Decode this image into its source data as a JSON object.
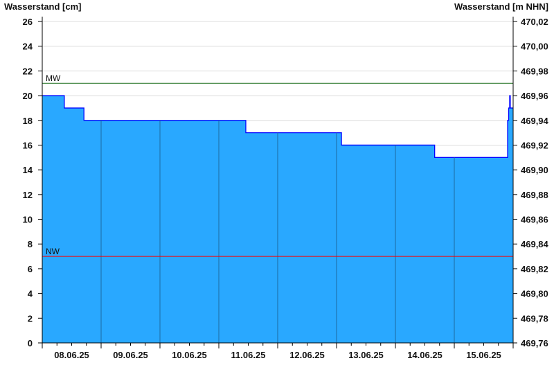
{
  "chart_data": {
    "type": "area",
    "ylabel_left": "Wasserstand [cm]",
    "ylabel_right": "Wasserstand [m NHN]",
    "ylim": [
      0,
      26
    ],
    "yticks_left": [
      "0",
      "2",
      "4",
      "6",
      "8",
      "10",
      "12",
      "14",
      "16",
      "18",
      "20",
      "22",
      "24",
      "26"
    ],
    "yticks_right": [
      "469,76",
      "469,78",
      "469,80",
      "469,82",
      "469,84",
      "469,86",
      "469,88",
      "469,90",
      "469,92",
      "469,94",
      "469,96",
      "469,98",
      "470,00",
      "470,02"
    ],
    "xlim": [
      "07.06.25 24:00",
      "15.06.25 24:00"
    ],
    "xticks": [
      "08.06.25",
      "09.06.25",
      "10.06.25",
      "11.06.25",
      "12.06.25",
      "13.06.25",
      "14.06.25",
      "15.06.25"
    ],
    "grid": true,
    "fill_color": "#29a8ff",
    "line_color": "#0000ff",
    "series": [
      {
        "points": [
          [
            "08.06.25 00:00",
            20
          ],
          [
            "08.06.25 09:00",
            19
          ],
          [
            "08.06.25 17:00",
            18
          ],
          [
            "11.06.25 11:00",
            17
          ],
          [
            "13.06.25 02:00",
            16
          ],
          [
            "14.06.25 16:00",
            15
          ],
          [
            "15.06.25 21:45",
            18
          ],
          [
            "15.06.25 22:10",
            19
          ],
          [
            "15.06.25 22:35",
            20
          ],
          [
            "15.06.25 22:50",
            19
          ],
          [
            "15.06.25 24:00",
            19
          ]
        ]
      }
    ],
    "reference_lines": [
      {
        "label": "MW",
        "value": 21,
        "color": "#1a6e1a"
      },
      {
        "label": "NW",
        "value": 7,
        "color": "#ff0000"
      }
    ]
  }
}
